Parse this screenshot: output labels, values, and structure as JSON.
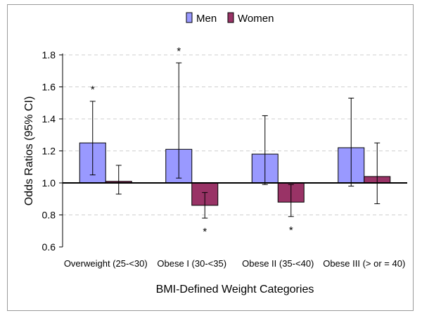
{
  "chart_data": {
    "type": "bar",
    "title": "",
    "xlabel": "BMI-Defined Weight Categories",
    "ylabel": "Odds Ratios (95% CI)",
    "ylim": [
      0.6,
      1.8
    ],
    "yticks": [
      "0.6",
      "0.8",
      "1.0",
      "1.2",
      "1.4",
      "1.6",
      "1.8"
    ],
    "baseline": 1.0,
    "grid": "horizontal dashed",
    "legend_position": "top-center",
    "categories": [
      "Overweight (25-<30)",
      "Obese I (30-<35)",
      "Obese II (35-<40)",
      "Obese III (> or = 40)"
    ],
    "series": [
      {
        "name": "Men",
        "color": "#9999ff",
        "values": [
          1.25,
          1.21,
          1.18,
          1.22
        ],
        "ci_low": [
          1.05,
          1.03,
          0.99,
          0.98
        ],
        "ci_high": [
          1.51,
          1.75,
          1.42,
          1.53
        ],
        "significant": [
          true,
          true,
          false,
          false
        ]
      },
      {
        "name": "Women",
        "color": "#993366",
        "values": [
          1.01,
          0.86,
          0.88,
          1.04
        ],
        "ci_low": [
          0.93,
          0.78,
          0.79,
          0.87
        ],
        "ci_high": [
          1.11,
          0.94,
          0.99,
          1.25
        ],
        "significant": [
          false,
          true,
          true,
          false
        ]
      }
    ],
    "significance_marker": "*"
  }
}
